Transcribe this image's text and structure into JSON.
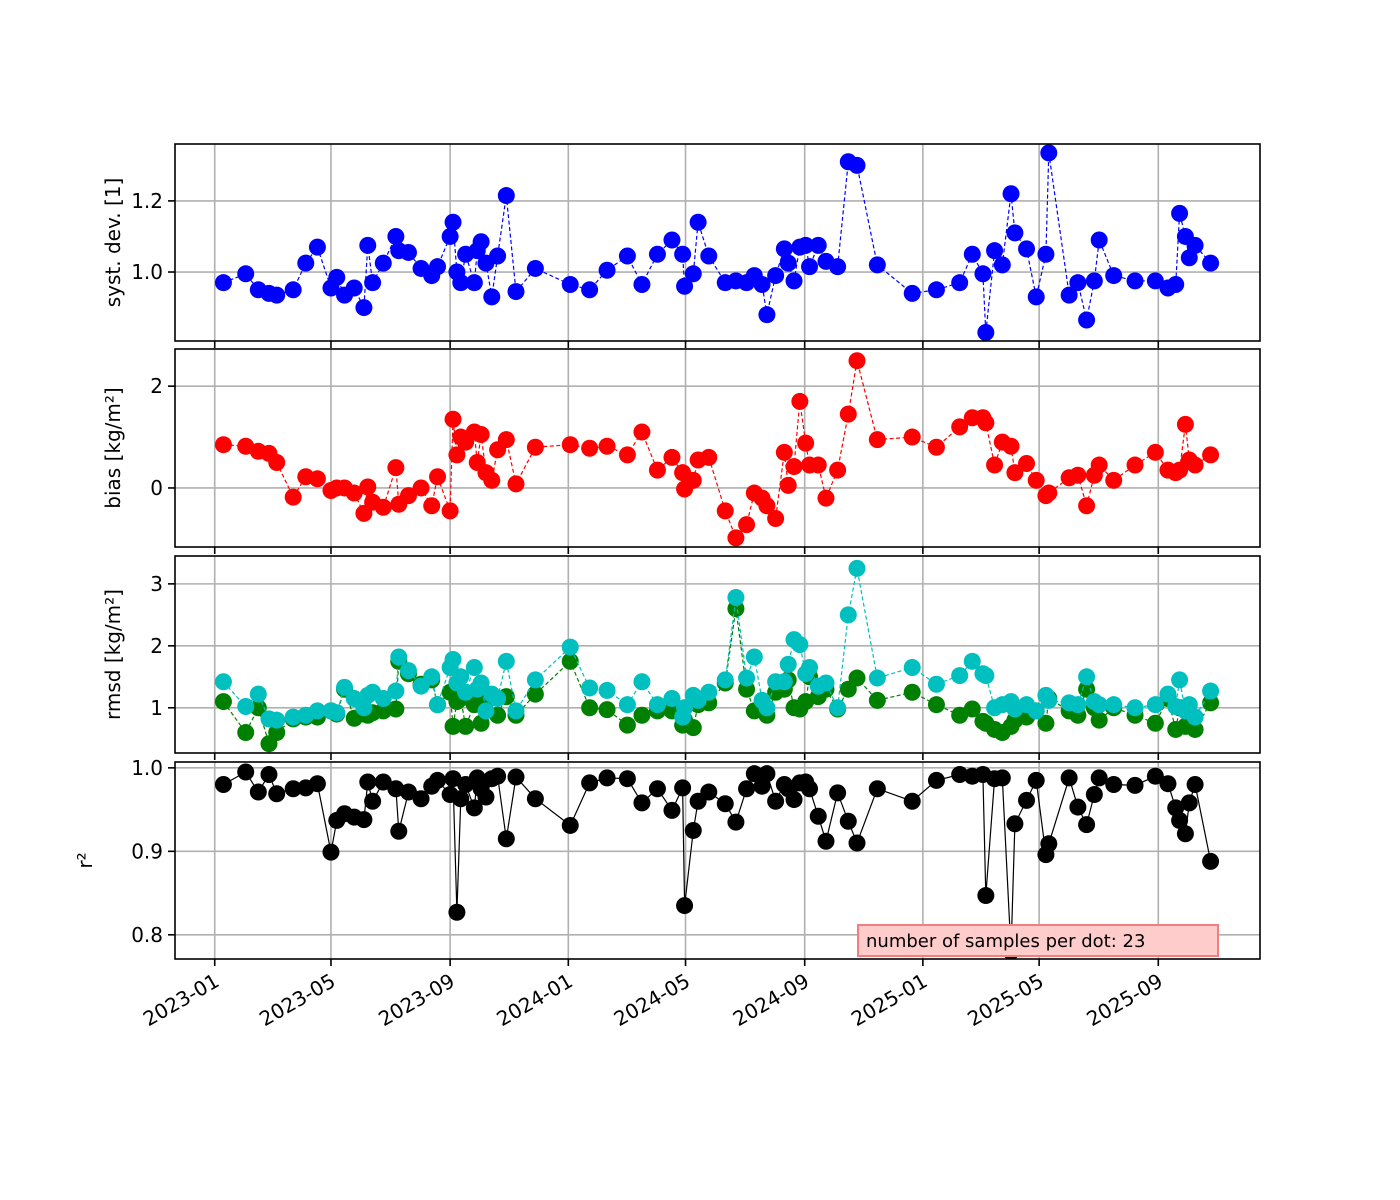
{
  "chart_data": [
    {
      "type": "line",
      "ylabel": "syst. dev. [1]",
      "ylim": [
        0.806,
        1.36
      ],
      "yticks": [
        1.0,
        1.2
      ],
      "ytick_labels": [
        "1.0",
        "1.2"
      ],
      "linestyle": "dashed",
      "series": [
        {
          "name": "syst. dev.",
          "color": "#0000ff",
          "key": "syst"
        }
      ]
    },
    {
      "type": "line",
      "ylabel": "bias [kg/m²]",
      "ylim": [
        -1.16,
        2.73
      ],
      "yticks": [
        0,
        2
      ],
      "ytick_labels": [
        "0",
        "2"
      ],
      "linestyle": "dashed",
      "series": [
        {
          "name": "bias",
          "color": "#ff0000",
          "key": "bias"
        }
      ]
    },
    {
      "type": "line",
      "ylabel": "rmsd [kg/m²]",
      "ylim": [
        0.27,
        3.45
      ],
      "yticks": [
        1,
        2,
        3
      ],
      "ytick_labels": [
        "1",
        "2",
        "3"
      ],
      "linestyle": "dashed",
      "series": [
        {
          "name": "rmsd (green)",
          "color": "#008000",
          "key": "rmsd_g"
        },
        {
          "name": "rmsd (cyan)",
          "color": "#00bfbf",
          "key": "rmsd_c"
        }
      ]
    },
    {
      "type": "line",
      "ylabel": "r²",
      "ylim": [
        0.771,
        1.007
      ],
      "yticks": [
        0.8,
        0.9,
        1.0
      ],
      "ytick_labels": [
        "0.8",
        "0.9",
        "1.0"
      ],
      "linestyle": "solid",
      "series": [
        {
          "name": "r²",
          "color": "#000000",
          "key": "r2"
        }
      ],
      "annotation": "number of samples per dot: 23"
    }
  ],
  "x_axis": {
    "unit": "days since 2023-01-01",
    "xlim": [
      -41,
      1079
    ],
    "ticks": [
      0,
      120,
      243,
      365,
      486,
      609,
      731,
      851,
      974
    ],
    "tick_labels": [
      "2023-01",
      "2023-05",
      "2023-09",
      "2024-01",
      "2024-05",
      "2024-09",
      "2025-01",
      "2025-05",
      "2025-09"
    ]
  },
  "x": [
    9,
    32,
    45,
    56,
    64,
    81,
    94,
    106,
    120,
    126,
    134,
    144,
    154,
    158,
    163,
    174,
    187,
    190,
    200,
    213,
    224,
    230,
    243,
    246,
    250,
    254,
    259,
    268,
    271,
    275,
    280,
    286,
    292,
    301,
    311,
    331,
    367,
    387,
    405,
    426,
    441,
    457,
    472,
    483,
    485,
    494,
    499,
    510,
    527,
    538,
    549,
    557,
    565,
    570,
    579,
    588,
    592,
    598,
    604,
    610,
    614,
    623,
    631,
    643,
    654,
    663,
    684,
    720,
    745,
    769,
    782,
    793,
    796,
    805,
    813,
    822,
    826,
    838,
    848,
    858,
    861,
    882,
    891,
    900,
    908,
    913,
    928,
    950,
    971,
    984,
    992,
    996,
    1002,
    1006,
    1012,
    1028
  ],
  "syst": [
    0.97,
    0.995,
    0.95,
    0.94,
    0.935,
    0.95,
    1.025,
    1.07,
    0.955,
    0.985,
    0.935,
    0.955,
    0.9,
    1.075,
    0.97,
    1.025,
    1.1,
    1.06,
    1.055,
    1.01,
    0.99,
    1.015,
    1.1,
    1.14,
    1.0,
    0.97,
    1.05,
    0.97,
    1.06,
    1.085,
    1.025,
    0.93,
    1.045,
    1.215,
    0.945,
    1.01,
    0.965,
    0.95,
    1.005,
    1.045,
    0.965,
    1.05,
    1.09,
    1.05,
    0.96,
    0.995,
    1.14,
    1.045,
    0.97,
    0.975,
    0.97,
    0.99,
    0.965,
    0.88,
    0.99,
    1.065,
    1.025,
    0.975,
    1.07,
    1.075,
    1.015,
    1.075,
    1.03,
    1.015,
    1.31,
    1.3,
    1.02,
    0.94,
    0.95,
    0.97,
    1.05,
    0.995,
    0.83,
    1.06,
    1.02,
    1.22,
    1.11,
    1.065,
    0.93,
    1.05,
    1.335,
    0.935,
    0.97,
    0.865,
    0.975,
    1.09,
    0.99,
    0.975,
    0.975,
    0.955,
    0.965,
    1.165,
    1.1,
    1.04,
    1.075,
    1.025
  ],
  "bias": [
    0.85,
    0.82,
    0.72,
    0.68,
    0.5,
    -0.18,
    0.22,
    0.18,
    -0.05,
    0.0,
    0.0,
    -0.1,
    -0.5,
    0.02,
    -0.28,
    -0.38,
    0.4,
    -0.32,
    -0.15,
    0.0,
    -0.35,
    0.22,
    -0.45,
    1.35,
    0.65,
    1.0,
    0.9,
    1.1,
    0.5,
    1.05,
    0.3,
    0.15,
    0.75,
    0.95,
    0.08,
    0.8,
    0.85,
    0.78,
    0.82,
    0.65,
    1.1,
    0.35,
    0.6,
    0.3,
    -0.02,
    0.15,
    0.55,
    0.6,
    -0.45,
    -0.98,
    -0.72,
    -0.1,
    -0.2,
    -0.35,
    -0.6,
    0.7,
    0.05,
    0.42,
    1.7,
    0.88,
    0.45,
    0.45,
    -0.2,
    0.35,
    1.45,
    2.5,
    0.95,
    1.0,
    0.8,
    1.2,
    1.38,
    1.38,
    1.28,
    0.45,
    0.9,
    0.82,
    0.3,
    0.48,
    0.15,
    -0.15,
    -0.1,
    0.2,
    0.25,
    -0.35,
    0.25,
    0.45,
    0.15,
    0.45,
    0.7,
    0.35,
    0.3,
    0.35,
    1.25,
    0.55,
    0.45,
    0.65
  ],
  "rmsd_g": [
    1.1,
    0.6,
    1.0,
    0.42,
    0.6,
    0.82,
    0.85,
    0.85,
    0.95,
    0.9,
    1.3,
    0.83,
    0.9,
    0.88,
    0.92,
    0.95,
    0.98,
    1.75,
    1.55,
    1.38,
    1.45,
    1.05,
    1.25,
    0.7,
    1.1,
    1.15,
    0.7,
    1.05,
    1.2,
    0.75,
    1.1,
    1.2,
    0.88,
    1.18,
    0.88,
    1.22,
    1.75,
    1.0,
    0.97,
    0.72,
    0.88,
    0.95,
    0.95,
    0.72,
    0.8,
    0.68,
    1.05,
    1.08,
    1.4,
    2.6,
    1.3,
    0.95,
    1.0,
    0.88,
    1.25,
    1.3,
    1.45,
    1.0,
    0.98,
    1.1,
    1.5,
    1.18,
    1.3,
    0.98,
    1.3,
    1.48,
    1.12,
    1.25,
    1.05,
    0.88,
    0.98,
    0.78,
    0.75,
    0.65,
    0.6,
    0.7,
    0.8,
    0.85,
    0.95,
    0.75,
    1.15,
    0.95,
    0.88,
    1.3,
    1.0,
    0.8,
    1.0,
    0.88,
    0.75,
    1.15,
    0.65,
    1.0,
    0.7,
    0.9,
    0.65,
    1.08
  ],
  "rmsd_c": [
    1.42,
    1.02,
    1.22,
    0.82,
    0.8,
    0.85,
    0.88,
    0.95,
    0.95,
    0.92,
    1.33,
    1.15,
    1.0,
    1.2,
    1.25,
    1.15,
    1.27,
    1.82,
    1.6,
    1.35,
    1.5,
    1.05,
    1.65,
    1.78,
    1.4,
    1.5,
    1.25,
    1.65,
    1.3,
    1.4,
    0.95,
    1.22,
    1.15,
    1.75,
    0.95,
    1.45,
    1.98,
    1.32,
    1.28,
    1.05,
    1.42,
    1.05,
    1.15,
    0.85,
    1.0,
    1.2,
    1.12,
    1.25,
    1.45,
    2.78,
    1.48,
    1.82,
    1.12,
    1.0,
    1.42,
    1.42,
    1.7,
    2.1,
    2.02,
    1.55,
    1.65,
    1.35,
    1.4,
    1.0,
    2.5,
    3.25,
    1.48,
    1.65,
    1.38,
    1.52,
    1.75,
    1.55,
    1.52,
    1.0,
    1.05,
    1.1,
    0.98,
    1.05,
    0.95,
    1.2,
    1.12,
    1.08,
    1.05,
    1.5,
    1.1,
    1.05,
    1.05,
    1.0,
    1.05,
    1.22,
    1.02,
    1.45,
    0.95,
    1.05,
    0.85,
    1.27
  ],
  "r2": [
    0.98,
    0.995,
    0.971,
    0.992,
    0.969,
    0.975,
    0.976,
    0.981,
    0.899,
    0.937,
    0.945,
    0.941,
    0.938,
    0.983,
    0.96,
    0.983,
    0.975,
    0.924,
    0.971,
    0.963,
    0.978,
    0.985,
    0.968,
    0.987,
    0.827,
    0.963,
    0.98,
    0.952,
    0.988,
    0.975,
    0.965,
    0.987,
    0.99,
    0.915,
    0.989,
    0.963,
    0.931,
    0.982,
    0.988,
    0.987,
    0.958,
    0.975,
    0.949,
    0.976,
    0.835,
    0.925,
    0.96,
    0.971,
    0.957,
    0.935,
    0.975,
    0.993,
    0.978,
    0.993,
    0.96,
    0.98,
    0.975,
    0.962,
    0.982,
    0.983,
    0.975,
    0.942,
    0.912,
    0.97,
    0.936,
    0.91,
    0.975,
    0.96,
    0.985,
    0.992,
    0.99,
    0.992,
    0.847,
    0.987,
    0.988,
    0.78,
    0.933,
    0.961,
    0.985,
    0.896,
    0.909,
    0.988,
    0.953,
    0.932,
    0.968,
    0.988,
    0.98,
    0.979,
    0.99,
    0.981,
    0.952,
    0.937,
    0.921,
    0.958,
    0.98,
    0.888
  ]
}
